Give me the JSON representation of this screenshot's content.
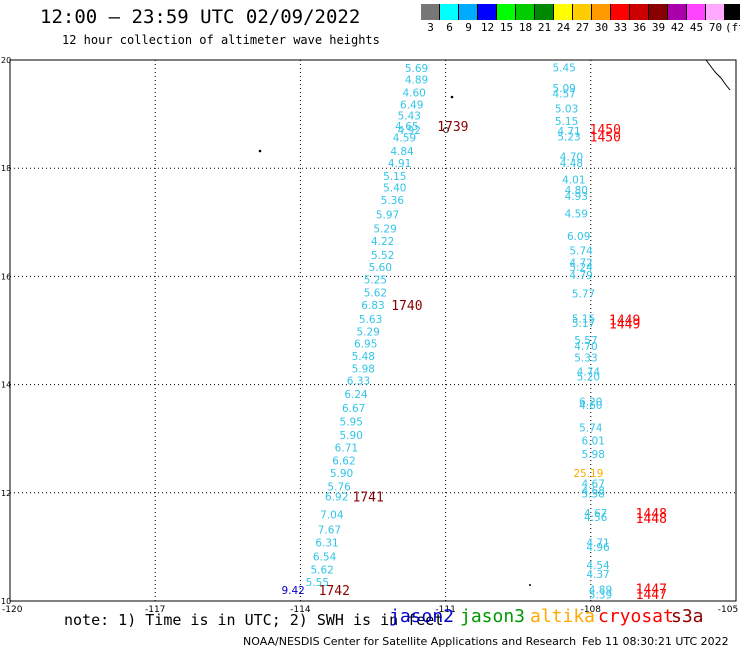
{
  "header": {
    "title": "12:00 – 23:59 UTC 02/09/2022",
    "subtitle": "12 hour collection of altimeter wave heights"
  },
  "color_scale": {
    "labels": [
      "3",
      "6",
      "9",
      "12",
      "15",
      "18",
      "21",
      "24",
      "27",
      "30",
      "33",
      "36",
      "39",
      "42",
      "45",
      "70",
      "(ft)"
    ],
    "colors": [
      "#777777",
      "#00ffff",
      "#00aaff",
      "#0000ff",
      "#00ff00",
      "#00cc00",
      "#008800",
      "#ffff00",
      "#ffcc00",
      "#ff9900",
      "#ff0000",
      "#cc0000",
      "#880000",
      "#aa00aa",
      "#ff44ff",
      "#ffaaff",
      "#000000"
    ]
  },
  "map": {
    "y_ticks": [
      "20",
      "18",
      "16",
      "14",
      "12",
      "10"
    ],
    "x_ticks": [
      "-120",
      "-117",
      "-114",
      "-111",
      "-108",
      "-105"
    ],
    "lon_range": [
      -120,
      -105
    ],
    "lat_range": [
      10,
      20
    ],
    "track_color": "#33c5e8",
    "time_color": "#8b0000",
    "cryosat_color": "#ff0000",
    "altika_color": "#ffaa00",
    "jason2_color": "#0000cc",
    "values_track1": [
      {
        "t": "5.69",
        "lon": -111.6,
        "lat": 19.85
      },
      {
        "t": "4.89",
        "lon": -111.6,
        "lat": 19.64
      },
      {
        "t": "4.60",
        "lon": -111.65,
        "lat": 19.4
      },
      {
        "t": "6.49",
        "lon": -111.7,
        "lat": 19.18
      },
      {
        "t": "5.43",
        "lon": -111.75,
        "lat": 18.97
      },
      {
        "t": "4.65",
        "lon": -111.8,
        "lat": 18.78
      },
      {
        "t": "4.92",
        "lon": -111.75,
        "lat": 18.71
      },
      {
        "t": "4.59",
        "lon": -111.85,
        "lat": 18.57
      },
      {
        "t": "4.84",
        "lon": -111.9,
        "lat": 18.32
      },
      {
        "t": "4.91",
        "lon": -111.95,
        "lat": 18.1
      },
      {
        "t": "5.15",
        "lon": -112.05,
        "lat": 17.86
      },
      {
        "t": "5.40",
        "lon": -112.05,
        "lat": 17.64
      },
      {
        "t": "5.36",
        "lon": -112.1,
        "lat": 17.41
      },
      {
        "t": "5.97",
        "lon": -112.2,
        "lat": 17.14
      },
      {
        "t": "5.29",
        "lon": -112.25,
        "lat": 16.89
      },
      {
        "t": "4.22",
        "lon": -112.3,
        "lat": 16.65
      },
      {
        "t": "5.52",
        "lon": -112.3,
        "lat": 16.4
      },
      {
        "t": "5.60",
        "lon": -112.35,
        "lat": 16.17
      },
      {
        "t": "5.25",
        "lon": -112.45,
        "lat": 15.94
      },
      {
        "t": "5.62",
        "lon": -112.45,
        "lat": 15.7
      },
      {
        "t": "6.83",
        "lon": -112.5,
        "lat": 15.47
      },
      {
        "t": "5.63",
        "lon": -112.55,
        "lat": 15.21
      },
      {
        "t": "5.29",
        "lon": -112.6,
        "lat": 14.98
      },
      {
        "t": "6.95",
        "lon": -112.65,
        "lat": 14.76
      },
      {
        "t": "5.48",
        "lon": -112.7,
        "lat": 14.53
      },
      {
        "t": "5.98",
        "lon": -112.7,
        "lat": 14.3
      },
      {
        "t": "6.33",
        "lon": -112.8,
        "lat": 14.08
      },
      {
        "t": "6.24",
        "lon": -112.85,
        "lat": 13.83
      },
      {
        "t": "6.67",
        "lon": -112.9,
        "lat": 13.57
      },
      {
        "t": "5.95",
        "lon": -112.95,
        "lat": 13.32
      },
      {
        "t": "5.90",
        "lon": -112.95,
        "lat": 13.07
      },
      {
        "t": "6.71",
        "lon": -113.05,
        "lat": 12.84
      },
      {
        "t": "6.62",
        "lon": -113.1,
        "lat": 12.6
      },
      {
        "t": "5.90",
        "lon": -113.15,
        "lat": 12.37
      },
      {
        "t": "5.76",
        "lon": -113.2,
        "lat": 12.12
      },
      {
        "t": "6.92",
        "lon": -113.25,
        "lat": 11.93
      },
      {
        "t": "7.04",
        "lon": -113.35,
        "lat": 11.6
      },
      {
        "t": "7.67",
        "lon": -113.4,
        "lat": 11.32
      },
      {
        "t": "6.31",
        "lon": -113.45,
        "lat": 11.08
      },
      {
        "t": "6.54",
        "lon": -113.5,
        "lat": 10.82
      },
      {
        "t": "5.62",
        "lon": -113.55,
        "lat": 10.58
      },
      {
        "t": "5.55",
        "lon": -113.65,
        "lat": 10.35
      }
    ],
    "values_track2": [
      {
        "t": "5.45",
        "lon": -108.55,
        "lat": 19.86
      },
      {
        "t": "5.09",
        "lon": -108.55,
        "lat": 19.48
      },
      {
        "t": "4.57",
        "lon": -108.55,
        "lat": 19.38
      },
      {
        "t": "5.03",
        "lon": -108.5,
        "lat": 19.1
      },
      {
        "t": "5.15",
        "lon": -108.5,
        "lat": 18.87
      },
      {
        "t": "4.71",
        "lon": -108.45,
        "lat": 18.69
      },
      {
        "t": "5.23",
        "lon": -108.45,
        "lat": 18.59
      },
      {
        "t": "4.70",
        "lon": -108.4,
        "lat": 18.22
      },
      {
        "t": "4.48",
        "lon": -108.4,
        "lat": 18.1
      },
      {
        "t": "4.01",
        "lon": -108.35,
        "lat": 17.79
      },
      {
        "t": "4.80",
        "lon": -108.3,
        "lat": 17.6
      },
      {
        "t": "4.93",
        "lon": -108.3,
        "lat": 17.49
      },
      {
        "t": "4.59",
        "lon": -108.3,
        "lat": 17.16
      },
      {
        "t": "6.09",
        "lon": -108.25,
        "lat": 16.75
      },
      {
        "t": "5.74",
        "lon": -108.2,
        "lat": 16.48
      },
      {
        "t": "4.72",
        "lon": -108.2,
        "lat": 16.26
      },
      {
        "t": "5.24",
        "lon": -108.2,
        "lat": 16.17
      },
      {
        "t": "4.79",
        "lon": -108.2,
        "lat": 16.03
      },
      {
        "t": "5.77",
        "lon": -108.15,
        "lat": 15.68
      },
      {
        "t": "5.15",
        "lon": -108.15,
        "lat": 15.22
      },
      {
        "t": "5.17",
        "lon": -108.15,
        "lat": 15.14
      },
      {
        "t": "5.57",
        "lon": -108.1,
        "lat": 14.82
      },
      {
        "t": "4.70",
        "lon": -108.1,
        "lat": 14.71
      },
      {
        "t": "5.33",
        "lon": -108.1,
        "lat": 14.5
      },
      {
        "t": "4.74",
        "lon": -108.05,
        "lat": 14.24
      },
      {
        "t": "5.20",
        "lon": -108.05,
        "lat": 14.15
      },
      {
        "t": "6.20",
        "lon": -108.0,
        "lat": 13.69
      },
      {
        "t": "4.60",
        "lon": -108.0,
        "lat": 13.62
      },
      {
        "t": "5.74",
        "lon": -108.0,
        "lat": 13.21
      },
      {
        "t": "6.01",
        "lon": -107.95,
        "lat": 12.97
      },
      {
        "t": "5.98",
        "lon": -107.95,
        "lat": 12.72
      },
      {
        "t": "4.67",
        "lon": -107.95,
        "lat": 12.17
      },
      {
        "t": "4.68",
        "lon": -107.95,
        "lat": 12.04
      },
      {
        "t": "5.38",
        "lon": -107.95,
        "lat": 11.99
      },
      {
        "t": "4.67",
        "lon": -107.9,
        "lat": 11.63
      },
      {
        "t": "4.56",
        "lon": -107.9,
        "lat": 11.55
      },
      {
        "t": "4.71",
        "lon": -107.85,
        "lat": 11.08
      },
      {
        "t": "4.96",
        "lon": -107.85,
        "lat": 11.0
      },
      {
        "t": "4.54",
        "lon": -107.85,
        "lat": 10.67
      },
      {
        "t": "4.37",
        "lon": -107.85,
        "lat": 10.5
      },
      {
        "t": "4.89",
        "lon": -107.8,
        "lat": 10.21
      },
      {
        "t": "5.39",
        "lon": -107.8,
        "lat": 10.12
      }
    ],
    "altika_values": [
      {
        "t": "25.19",
        "lon": -108.05,
        "lat": 12.37
      }
    ],
    "jason2_values": [
      {
        "t": "9.42",
        "lon": -114.15,
        "lat": 10.2
      }
    ],
    "time_labels": [
      {
        "t": "1739",
        "lon": -110.85,
        "lat": 18.78,
        "c": "time"
      },
      {
        "t": "1740",
        "lon": -111.8,
        "lat": 15.47,
        "c": "time"
      },
      {
        "t": "1741",
        "lon": -112.6,
        "lat": 11.93,
        "c": "time"
      },
      {
        "t": "1742",
        "lon": -113.3,
        "lat": 10.2,
        "c": "time"
      },
      {
        "t": "1450",
        "lon": -107.7,
        "lat": 18.72,
        "c": "cryo"
      },
      {
        "t": "1450",
        "lon": -107.7,
        "lat": 18.59,
        "c": "cryo"
      },
      {
        "t": "1449",
        "lon": -107.3,
        "lat": 15.2,
        "c": "cryo"
      },
      {
        "t": "1449",
        "lon": -107.3,
        "lat": 15.13,
        "c": "cryo"
      },
      {
        "t": "1448",
        "lon": -106.75,
        "lat": 11.63,
        "c": "cryo"
      },
      {
        "t": "1448",
        "lon": -106.75,
        "lat": 11.53,
        "c": "cryo"
      },
      {
        "t": "1447",
        "lon": -106.75,
        "lat": 10.23,
        "c": "cryo"
      },
      {
        "t": "1447",
        "lon": -106.75,
        "lat": 10.13,
        "c": "cryo"
      }
    ]
  },
  "footer": {
    "note": "note: 1) Time is in UTC; 2) SWH is in feet",
    "legend": [
      {
        "name": "jason2",
        "color": "#0000cc"
      },
      {
        "name": "jason3",
        "color": "#009900"
      },
      {
        "name": "altika",
        "color": "#ffaa00"
      },
      {
        "name": "cryosat",
        "color": "#ff0000"
      },
      {
        "name": "s3a",
        "color": "#8b0000"
      }
    ],
    "credit": "NOAA/NESDIS Center for Satellite Applications and Research",
    "timestamp": "Feb 11 08:30:21 UTC 2022"
  }
}
